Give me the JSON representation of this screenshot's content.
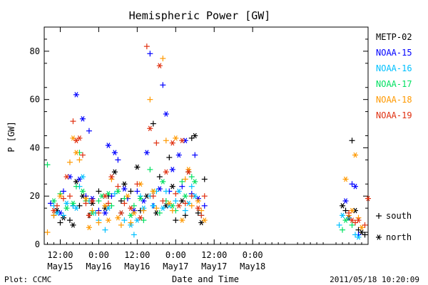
{
  "chart_data": {
    "type": "scatter",
    "title": "Hemispheric Power [GW]",
    "ylabel": "P [GW]",
    "xlabel": "Date and Time",
    "ylim": [
      0,
      90
    ],
    "xlim_hours_since_May15_00": [
      7,
      108
    ],
    "yticks": [
      0,
      20,
      40,
      60,
      80
    ],
    "xticks": [
      {
        "line1": "12:00",
        "line2": "May15"
      },
      {
        "line1": "0:00",
        "line2": "May16"
      },
      {
        "line1": "12:00",
        "line2": "May16"
      },
      {
        "line1": "0:00",
        "line2": "May17"
      },
      {
        "line1": "12:00",
        "line2": "May17"
      },
      {
        "line1": "0:00",
        "line2": "May18"
      }
    ],
    "marker_legend": [
      {
        "symbol": "+",
        "label": "south"
      },
      {
        "symbol": "*",
        "label": "north"
      }
    ],
    "series": [
      {
        "name": "METP-02",
        "color": "#000000",
        "points": [
          [
            10,
            12,
            "+"
          ],
          [
            11,
            14,
            "*"
          ],
          [
            12,
            9,
            "+"
          ],
          [
            13,
            11,
            "*"
          ],
          [
            15,
            10,
            "+"
          ],
          [
            16,
            8,
            "*"
          ],
          [
            17,
            26,
            "*"
          ],
          [
            18,
            16,
            "+"
          ],
          [
            19,
            20,
            "*"
          ],
          [
            21,
            12,
            "+"
          ],
          [
            22,
            17,
            "*"
          ],
          [
            24,
            22,
            "+"
          ],
          [
            26,
            15,
            "*"
          ],
          [
            27,
            20,
            "+"
          ],
          [
            29,
            30,
            "*"
          ],
          [
            31,
            18,
            "+"
          ],
          [
            32,
            25,
            "*"
          ],
          [
            34,
            22,
            "+"
          ],
          [
            36,
            32,
            "*"
          ],
          [
            37,
            14,
            "+"
          ],
          [
            39,
            20,
            "*"
          ],
          [
            41,
            50,
            "+"
          ],
          [
            42,
            13,
            "*"
          ],
          [
            43,
            28,
            "+"
          ],
          [
            45,
            16,
            "*"
          ],
          [
            46,
            36,
            "+"
          ],
          [
            47,
            24,
            "*"
          ],
          [
            48,
            10,
            "+"
          ],
          [
            50,
            18,
            "*"
          ],
          [
            51,
            12,
            "+"
          ],
          [
            52,
            30,
            "*"
          ],
          [
            53,
            44,
            "+"
          ],
          [
            54,
            45,
            "*"
          ],
          [
            55,
            13,
            "+"
          ],
          [
            56,
            9,
            "*"
          ],
          [
            57,
            27,
            "+"
          ],
          [
            100,
            16,
            "*"
          ],
          [
            101,
            14,
            "+"
          ],
          [
            102,
            11,
            "*"
          ],
          [
            103,
            43,
            "+"
          ],
          [
            104,
            14,
            "*"
          ],
          [
            105,
            6,
            "+"
          ],
          [
            106,
            5,
            "*"
          ],
          [
            107,
            4,
            "+"
          ]
        ]
      },
      {
        "name": "NOAA-15",
        "color": "#0000ff",
        "points": [
          [
            9,
            17,
            "+"
          ],
          [
            12,
            13,
            "*"
          ],
          [
            13,
            22,
            "+"
          ],
          [
            15,
            28,
            "*"
          ],
          [
            16,
            16,
            "+"
          ],
          [
            17,
            62,
            "*"
          ],
          [
            18,
            27,
            "*"
          ],
          [
            19,
            52,
            "*"
          ],
          [
            20,
            20,
            "+"
          ],
          [
            21,
            47,
            "+"
          ],
          [
            22,
            19,
            "*"
          ],
          [
            24,
            14,
            "+"
          ],
          [
            26,
            13,
            "*"
          ],
          [
            27,
            41,
            "*"
          ],
          [
            28,
            20,
            "+"
          ],
          [
            29,
            38,
            "*"
          ],
          [
            30,
            35,
            "+"
          ],
          [
            32,
            23,
            "*"
          ],
          [
            33,
            19,
            "+"
          ],
          [
            35,
            14,
            "*"
          ],
          [
            36,
            22,
            "+"
          ],
          [
            38,
            18,
            "*"
          ],
          [
            39,
            38,
            "*"
          ],
          [
            40,
            79,
            "+"
          ],
          [
            41,
            16,
            "+"
          ],
          [
            43,
            23,
            "*"
          ],
          [
            44,
            66,
            "+"
          ],
          [
            45,
            54,
            "*"
          ],
          [
            46,
            22,
            "+"
          ],
          [
            47,
            31,
            "*"
          ],
          [
            49,
            37,
            "*"
          ],
          [
            50,
            24,
            "+"
          ],
          [
            51,
            43,
            "*"
          ],
          [
            53,
            21,
            "+"
          ],
          [
            54,
            37,
            "+"
          ],
          [
            55,
            19,
            "*"
          ],
          [
            57,
            16,
            "+"
          ],
          [
            101,
            18,
            "*"
          ],
          [
            103,
            25,
            "+"
          ],
          [
            104,
            24,
            "*"
          ],
          [
            105,
            4,
            "+"
          ]
        ]
      },
      {
        "name": "NOAA-16",
        "color": "#00c0ff",
        "points": [
          [
            10,
            16,
            "+"
          ],
          [
            11,
            13,
            "*"
          ],
          [
            13,
            12,
            "+"
          ],
          [
            14,
            17,
            "*"
          ],
          [
            16,
            16,
            "+"
          ],
          [
            17,
            15,
            "*"
          ],
          [
            18,
            24,
            "+"
          ],
          [
            19,
            28,
            "*"
          ],
          [
            21,
            18,
            "+"
          ],
          [
            22,
            13,
            "*"
          ],
          [
            23,
            13,
            "+"
          ],
          [
            24,
            10,
            "+"
          ],
          [
            26,
            6,
            "+"
          ],
          [
            27,
            15,
            "*"
          ],
          [
            29,
            21,
            "+"
          ],
          [
            31,
            13,
            "*"
          ],
          [
            32,
            10,
            "+"
          ],
          [
            34,
            8,
            "*"
          ],
          [
            35,
            4,
            "+"
          ],
          [
            36,
            10,
            "*"
          ],
          [
            37,
            20,
            "+"
          ],
          [
            38,
            15,
            "*"
          ],
          [
            40,
            20,
            "+"
          ],
          [
            41,
            16,
            "*"
          ],
          [
            42,
            22,
            "+"
          ],
          [
            44,
            15,
            "*"
          ],
          [
            45,
            22,
            "+"
          ],
          [
            46,
            16,
            "*"
          ],
          [
            48,
            18,
            "+"
          ],
          [
            49,
            22,
            "*"
          ],
          [
            51,
            14,
            "+"
          ],
          [
            52,
            17,
            "*"
          ],
          [
            53,
            24,
            "+"
          ],
          [
            54,
            20,
            "*"
          ],
          [
            56,
            12,
            "+"
          ],
          [
            99,
            8,
            "+"
          ],
          [
            100,
            12,
            "*"
          ],
          [
            102,
            11,
            "+"
          ],
          [
            104,
            4,
            "+"
          ],
          [
            105,
            3,
            "*"
          ]
        ]
      },
      {
        "name": "NOAA-17",
        "color": "#00e060",
        "points": [
          [
            8,
            33,
            "+"
          ],
          [
            10,
            18,
            "*"
          ],
          [
            12,
            21,
            "+"
          ],
          [
            14,
            15,
            "*"
          ],
          [
            16,
            17,
            "*"
          ],
          [
            17,
            24,
            "+"
          ],
          [
            18,
            38,
            "+"
          ],
          [
            19,
            22,
            "*"
          ],
          [
            20,
            18,
            "+"
          ],
          [
            22,
            13,
            "*"
          ],
          [
            24,
            18,
            "+"
          ],
          [
            25,
            20,
            "*"
          ],
          [
            27,
            21,
            "*"
          ],
          [
            28,
            16,
            "+"
          ],
          [
            30,
            22,
            "*"
          ],
          [
            32,
            19,
            "+"
          ],
          [
            34,
            12,
            "*"
          ],
          [
            35,
            16,
            "+"
          ],
          [
            37,
            19,
            "*"
          ],
          [
            38,
            10,
            "+"
          ],
          [
            40,
            31,
            "+"
          ],
          [
            41,
            22,
            "*"
          ],
          [
            43,
            13,
            "+"
          ],
          [
            44,
            26,
            "*"
          ],
          [
            45,
            18,
            "+"
          ],
          [
            47,
            16,
            "*"
          ],
          [
            48,
            14,
            "+"
          ],
          [
            50,
            26,
            "+"
          ],
          [
            51,
            20,
            "*"
          ],
          [
            53,
            28,
            "+"
          ],
          [
            54,
            26,
            "*"
          ],
          [
            100,
            6,
            "+"
          ],
          [
            101,
            10,
            "*"
          ],
          [
            103,
            8,
            "+"
          ]
        ]
      },
      {
        "name": "NOAA-18",
        "color": "#ff9900",
        "points": [
          [
            8,
            5,
            "+"
          ],
          [
            10,
            12,
            "+"
          ],
          [
            12,
            20,
            "*"
          ],
          [
            15,
            34,
            "+"
          ],
          [
            16,
            44,
            "*"
          ],
          [
            17,
            38,
            "*"
          ],
          [
            18,
            35,
            "+"
          ],
          [
            20,
            19,
            "*"
          ],
          [
            21,
            7,
            "*"
          ],
          [
            22,
            14,
            "+"
          ],
          [
            24,
            9,
            "+"
          ],
          [
            26,
            16,
            "*"
          ],
          [
            27,
            10,
            "*"
          ],
          [
            28,
            27,
            "+"
          ],
          [
            30,
            11,
            "*"
          ],
          [
            31,
            8,
            "+"
          ],
          [
            33,
            20,
            "*"
          ],
          [
            34,
            9,
            "+"
          ],
          [
            35,
            13,
            "*"
          ],
          [
            37,
            25,
            "*"
          ],
          [
            38,
            14,
            "+"
          ],
          [
            40,
            60,
            "+"
          ],
          [
            41,
            22,
            "*"
          ],
          [
            42,
            15,
            "+"
          ],
          [
            44,
            77,
            "+"
          ],
          [
            45,
            43,
            "+"
          ],
          [
            46,
            17,
            "*"
          ],
          [
            47,
            14,
            "+"
          ],
          [
            48,
            44,
            "*"
          ],
          [
            50,
            10,
            "*"
          ],
          [
            51,
            27,
            "+"
          ],
          [
            52,
            31,
            "*"
          ],
          [
            53,
            16,
            "+"
          ],
          [
            55,
            18,
            "*"
          ],
          [
            56,
            14,
            "+"
          ],
          [
            57,
            10,
            "*"
          ],
          [
            101,
            27,
            "*"
          ],
          [
            102,
            12,
            "+"
          ],
          [
            103,
            14,
            "*"
          ],
          [
            104,
            37,
            "*"
          ],
          [
            105,
            11,
            "+"
          ],
          [
            106,
            7,
            "*"
          ]
        ]
      },
      {
        "name": "NOAA-19",
        "color": "#e03010",
        "points": [
          [
            10,
            14,
            "*"
          ],
          [
            11,
            16,
            "+"
          ],
          [
            13,
            19,
            "+"
          ],
          [
            14,
            28,
            "*"
          ],
          [
            15,
            20,
            "+"
          ],
          [
            16,
            51,
            "+"
          ],
          [
            17,
            43,
            "*"
          ],
          [
            18,
            44,
            "*"
          ],
          [
            19,
            37,
            "+"
          ],
          [
            20,
            17,
            "+"
          ],
          [
            21,
            12,
            "*"
          ],
          [
            22,
            18,
            "*"
          ],
          [
            24,
            13,
            "+"
          ],
          [
            26,
            20,
            "*"
          ],
          [
            27,
            17,
            "+"
          ],
          [
            28,
            28,
            "*"
          ],
          [
            30,
            24,
            "+"
          ],
          [
            31,
            13,
            "*"
          ],
          [
            32,
            17,
            "+"
          ],
          [
            34,
            15,
            "*"
          ],
          [
            36,
            25,
            "+"
          ],
          [
            37,
            11,
            "*"
          ],
          [
            39,
            82,
            "+"
          ],
          [
            40,
            48,
            "*"
          ],
          [
            41,
            20,
            "+"
          ],
          [
            42,
            42,
            "+"
          ],
          [
            43,
            74,
            "*"
          ],
          [
            44,
            18,
            "+"
          ],
          [
            45,
            30,
            "*"
          ],
          [
            47,
            42,
            "*"
          ],
          [
            48,
            21,
            "+"
          ],
          [
            49,
            16,
            "*"
          ],
          [
            50,
            43,
            "*"
          ],
          [
            51,
            17,
            "+"
          ],
          [
            52,
            30,
            "*"
          ],
          [
            53,
            20,
            "+"
          ],
          [
            55,
            15,
            "*"
          ],
          [
            56,
            12,
            "+"
          ],
          [
            57,
            20,
            "+"
          ],
          [
            102,
            13,
            "+"
          ],
          [
            103,
            10,
            "*"
          ],
          [
            104,
            9,
            "+"
          ],
          [
            105,
            10,
            "*"
          ],
          [
            107,
            8,
            "+"
          ],
          [
            108,
            19,
            "*"
          ]
        ]
      }
    ]
  },
  "footer": {
    "left": "Plot: CCMC",
    "right": "2011/05/18 10:20:09"
  }
}
